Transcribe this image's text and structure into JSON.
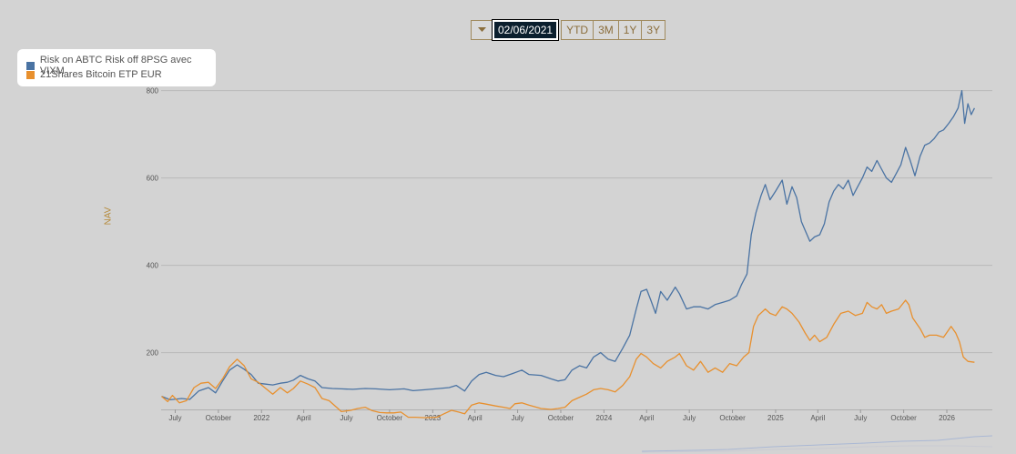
{
  "range_selector": {
    "date": "02/06/2021",
    "buttons": [
      "YTD",
      "3M",
      "1Y",
      "3Y"
    ]
  },
  "chart_data": {
    "type": "line",
    "ylabel": "NAV",
    "ylim": [
      70,
      820
    ],
    "yticks": [
      200,
      400,
      600,
      800
    ],
    "xlim": [
      "2021-06-01",
      "2026-04-08"
    ],
    "xticks": [
      {
        "date": "2021-07-01",
        "label": "July"
      },
      {
        "date": "2021-10-01",
        "label": "October"
      },
      {
        "date": "2022-01-01",
        "label": "2022"
      },
      {
        "date": "2022-04-01",
        "label": "April"
      },
      {
        "date": "2022-07-01",
        "label": "July"
      },
      {
        "date": "2022-10-01",
        "label": "October"
      },
      {
        "date": "2023-01-01",
        "label": "2023"
      },
      {
        "date": "2023-04-01",
        "label": "April"
      },
      {
        "date": "2023-07-01",
        "label": "July"
      },
      {
        "date": "2023-10-01",
        "label": "October"
      },
      {
        "date": "2024-01-01",
        "label": "2024"
      },
      {
        "date": "2024-04-01",
        "label": "April"
      },
      {
        "date": "2024-07-01",
        "label": "July"
      },
      {
        "date": "2024-10-01",
        "label": "October"
      },
      {
        "date": "2025-01-01",
        "label": "2025"
      },
      {
        "date": "2025-04-01",
        "label": "April"
      },
      {
        "date": "2025-07-01",
        "label": "July"
      },
      {
        "date": "2025-10-01",
        "label": "October"
      },
      {
        "date": "2026-01-01",
        "label": "2026"
      }
    ],
    "grid": true,
    "legend_position": "top-left",
    "series": [
      {
        "name": "Risk on ABTC Risk off 8PSG avec VIXM",
        "color": "#4a73a3",
        "points": [
          [
            "2021-06-02",
            100
          ],
          [
            "2021-06-20",
            92
          ],
          [
            "2021-07-15",
            95
          ],
          [
            "2021-08-01",
            93
          ],
          [
            "2021-08-20",
            112
          ],
          [
            "2021-09-10",
            120
          ],
          [
            "2021-09-25",
            108
          ],
          [
            "2021-10-10",
            135
          ],
          [
            "2021-10-25",
            160
          ],
          [
            "2021-11-10",
            172
          ],
          [
            "2021-11-25",
            162
          ],
          [
            "2021-12-10",
            150
          ],
          [
            "2021-12-25",
            130
          ],
          [
            "2022-01-10",
            128
          ],
          [
            "2022-01-25",
            126
          ],
          [
            "2022-02-10",
            130
          ],
          [
            "2022-02-25",
            132
          ],
          [
            "2022-03-10",
            137
          ],
          [
            "2022-03-25",
            148
          ],
          [
            "2022-04-10",
            140
          ],
          [
            "2022-04-25",
            135
          ],
          [
            "2022-05-10",
            120
          ],
          [
            "2022-06-01",
            118
          ],
          [
            "2022-06-20",
            117
          ],
          [
            "2022-07-15",
            116
          ],
          [
            "2022-08-10",
            118
          ],
          [
            "2022-09-01",
            117
          ],
          [
            "2022-10-01",
            115
          ],
          [
            "2022-11-01",
            117
          ],
          [
            "2022-11-20",
            113
          ],
          [
            "2022-12-15",
            115
          ],
          [
            "2023-01-15",
            118
          ],
          [
            "2023-02-05",
            120
          ],
          [
            "2023-02-20",
            125
          ],
          [
            "2023-03-10",
            112
          ],
          [
            "2023-03-25",
            135
          ],
          [
            "2023-04-10",
            150
          ],
          [
            "2023-04-25",
            155
          ],
          [
            "2023-05-15",
            148
          ],
          [
            "2023-06-01",
            145
          ],
          [
            "2023-06-20",
            152
          ],
          [
            "2023-07-10",
            160
          ],
          [
            "2023-07-25",
            150
          ],
          [
            "2023-08-20",
            148
          ],
          [
            "2023-09-10",
            140
          ],
          [
            "2023-09-25",
            135
          ],
          [
            "2023-10-10",
            138
          ],
          [
            "2023-10-25",
            160
          ],
          [
            "2023-11-10",
            170
          ],
          [
            "2023-11-25",
            165
          ],
          [
            "2023-12-10",
            190
          ],
          [
            "2023-12-25",
            200
          ],
          [
            "2024-01-10",
            185
          ],
          [
            "2024-01-25",
            180
          ],
          [
            "2024-02-10",
            210
          ],
          [
            "2024-02-25",
            240
          ],
          [
            "2024-03-10",
            300
          ],
          [
            "2024-03-20",
            340
          ],
          [
            "2024-04-01",
            345
          ],
          [
            "2024-04-10",
            320
          ],
          [
            "2024-04-20",
            290
          ],
          [
            "2024-05-01",
            340
          ],
          [
            "2024-05-15",
            320
          ],
          [
            "2024-06-01",
            350
          ],
          [
            "2024-06-10",
            335
          ],
          [
            "2024-06-25",
            300
          ],
          [
            "2024-07-10",
            305
          ],
          [
            "2024-07-25",
            305
          ],
          [
            "2024-08-10",
            300
          ],
          [
            "2024-08-25",
            310
          ],
          [
            "2024-09-10",
            315
          ],
          [
            "2024-09-25",
            320
          ],
          [
            "2024-10-10",
            330
          ],
          [
            "2024-10-20",
            355
          ],
          [
            "2024-11-01",
            380
          ],
          [
            "2024-11-10",
            470
          ],
          [
            "2024-11-20",
            520
          ],
          [
            "2024-12-01",
            560
          ],
          [
            "2024-12-10",
            585
          ],
          [
            "2024-12-20",
            550
          ],
          [
            "2025-01-01",
            570
          ],
          [
            "2025-01-15",
            595
          ],
          [
            "2025-01-25",
            540
          ],
          [
            "2025-02-05",
            580
          ],
          [
            "2025-02-15",
            555
          ],
          [
            "2025-02-25",
            500
          ],
          [
            "2025-03-05",
            480
          ],
          [
            "2025-03-15",
            455
          ],
          [
            "2025-03-25",
            465
          ],
          [
            "2025-04-05",
            470
          ],
          [
            "2025-04-15",
            495
          ],
          [
            "2025-04-25",
            545
          ],
          [
            "2025-05-05",
            570
          ],
          [
            "2025-05-15",
            585
          ],
          [
            "2025-05-25",
            575
          ],
          [
            "2025-06-05",
            595
          ],
          [
            "2025-06-15",
            560
          ],
          [
            "2025-06-25",
            580
          ],
          [
            "2025-07-05",
            600
          ],
          [
            "2025-07-15",
            625
          ],
          [
            "2025-07-25",
            615
          ],
          [
            "2025-08-05",
            640
          ],
          [
            "2025-08-15",
            620
          ],
          [
            "2025-08-25",
            600
          ],
          [
            "2025-09-05",
            590
          ],
          [
            "2025-09-15",
            610
          ],
          [
            "2025-09-25",
            630
          ],
          [
            "2025-10-05",
            670
          ],
          [
            "2025-10-15",
            640
          ],
          [
            "2025-10-25",
            605
          ],
          [
            "2025-11-05",
            650
          ],
          [
            "2025-11-15",
            675
          ],
          [
            "2025-11-25",
            680
          ],
          [
            "2025-12-05",
            690
          ],
          [
            "2025-12-15",
            705
          ],
          [
            "2025-12-25",
            710
          ],
          [
            "2026-01-05",
            725
          ],
          [
            "2026-01-15",
            740
          ],
          [
            "2026-01-25",
            760
          ],
          [
            "2026-02-02",
            800
          ],
          [
            "2026-02-08",
            725
          ],
          [
            "2026-02-15",
            770
          ],
          [
            "2026-02-22",
            745
          ],
          [
            "2026-03-01",
            760
          ]
        ]
      },
      {
        "name": "21Shares Bitcoin ETP EUR",
        "color": "#e8902e",
        "points": [
          [
            "2021-06-02",
            100
          ],
          [
            "2021-06-15",
            88
          ],
          [
            "2021-06-25",
            102
          ],
          [
            "2021-07-10",
            85
          ],
          [
            "2021-07-25",
            90
          ],
          [
            "2021-08-10",
            120
          ],
          [
            "2021-08-25",
            130
          ],
          [
            "2021-09-10",
            132
          ],
          [
            "2021-09-25",
            118
          ],
          [
            "2021-10-10",
            140
          ],
          [
            "2021-10-25",
            168
          ],
          [
            "2021-11-10",
            185
          ],
          [
            "2021-11-25",
            170
          ],
          [
            "2021-12-10",
            140
          ],
          [
            "2021-12-25",
            132
          ],
          [
            "2022-01-10",
            118
          ],
          [
            "2022-01-25",
            105
          ],
          [
            "2022-02-10",
            120
          ],
          [
            "2022-02-25",
            108
          ],
          [
            "2022-03-10",
            118
          ],
          [
            "2022-03-25",
            135
          ],
          [
            "2022-04-10",
            128
          ],
          [
            "2022-04-25",
            120
          ],
          [
            "2022-05-10",
            95
          ],
          [
            "2022-05-25",
            90
          ],
          [
            "2022-06-10",
            75
          ],
          [
            "2022-06-20",
            65
          ],
          [
            "2022-07-10",
            68
          ],
          [
            "2022-07-25",
            72
          ],
          [
            "2022-08-10",
            75
          ],
          [
            "2022-08-25",
            67
          ],
          [
            "2022-09-10",
            63
          ],
          [
            "2022-09-25",
            62
          ],
          [
            "2022-10-10",
            62
          ],
          [
            "2022-10-25",
            64
          ],
          [
            "2022-11-10",
            52
          ],
          [
            "2022-11-25",
            52
          ],
          [
            "2022-12-15",
            51
          ],
          [
            "2023-01-10",
            52
          ],
          [
            "2023-01-25",
            60
          ],
          [
            "2023-02-10",
            68
          ],
          [
            "2023-02-25",
            64
          ],
          [
            "2023-03-10",
            60
          ],
          [
            "2023-03-25",
            80
          ],
          [
            "2023-04-10",
            85
          ],
          [
            "2023-04-25",
            82
          ],
          [
            "2023-05-15",
            78
          ],
          [
            "2023-06-01",
            75
          ],
          [
            "2023-06-15",
            72
          ],
          [
            "2023-06-25",
            83
          ],
          [
            "2023-07-10",
            85
          ],
          [
            "2023-07-25",
            80
          ],
          [
            "2023-08-20",
            72
          ],
          [
            "2023-09-10",
            70
          ],
          [
            "2023-09-25",
            72
          ],
          [
            "2023-10-10",
            75
          ],
          [
            "2023-10-25",
            90
          ],
          [
            "2023-11-10",
            98
          ],
          [
            "2023-11-25",
            105
          ],
          [
            "2023-12-10",
            115
          ],
          [
            "2023-12-25",
            118
          ],
          [
            "2024-01-10",
            115
          ],
          [
            "2024-01-25",
            110
          ],
          [
            "2024-02-10",
            125
          ],
          [
            "2024-02-25",
            145
          ],
          [
            "2024-03-10",
            185
          ],
          [
            "2024-03-20",
            198
          ],
          [
            "2024-04-01",
            190
          ],
          [
            "2024-04-15",
            175
          ],
          [
            "2024-05-01",
            165
          ],
          [
            "2024-05-15",
            180
          ],
          [
            "2024-06-01",
            190
          ],
          [
            "2024-06-10",
            198
          ],
          [
            "2024-06-25",
            170
          ],
          [
            "2024-07-10",
            160
          ],
          [
            "2024-07-25",
            180
          ],
          [
            "2024-08-10",
            155
          ],
          [
            "2024-08-25",
            165
          ],
          [
            "2024-09-10",
            155
          ],
          [
            "2024-09-25",
            175
          ],
          [
            "2024-10-10",
            170
          ],
          [
            "2024-10-25",
            190
          ],
          [
            "2024-11-05",
            200
          ],
          [
            "2024-11-15",
            260
          ],
          [
            "2024-11-25",
            285
          ],
          [
            "2024-12-10",
            300
          ],
          [
            "2024-12-20",
            290
          ],
          [
            "2025-01-01",
            285
          ],
          [
            "2025-01-15",
            305
          ],
          [
            "2025-01-25",
            300
          ],
          [
            "2025-02-05",
            290
          ],
          [
            "2025-02-20",
            270
          ],
          [
            "2025-03-05",
            245
          ],
          [
            "2025-03-15",
            228
          ],
          [
            "2025-03-25",
            240
          ],
          [
            "2025-04-05",
            225
          ],
          [
            "2025-04-20",
            235
          ],
          [
            "2025-05-05",
            265
          ],
          [
            "2025-05-20",
            290
          ],
          [
            "2025-06-05",
            295
          ],
          [
            "2025-06-20",
            285
          ],
          [
            "2025-07-05",
            290
          ],
          [
            "2025-07-15",
            315
          ],
          [
            "2025-07-25",
            305
          ],
          [
            "2025-08-05",
            300
          ],
          [
            "2025-08-15",
            310
          ],
          [
            "2025-08-25",
            290
          ],
          [
            "2025-09-05",
            295
          ],
          [
            "2025-09-20",
            300
          ],
          [
            "2025-10-05",
            320
          ],
          [
            "2025-10-12",
            310
          ],
          [
            "2025-10-20",
            280
          ],
          [
            "2025-11-05",
            255
          ],
          [
            "2025-11-15",
            235
          ],
          [
            "2025-11-25",
            240
          ],
          [
            "2025-12-10",
            240
          ],
          [
            "2025-12-25",
            235
          ],
          [
            "2026-01-10",
            260
          ],
          [
            "2026-01-20",
            245
          ],
          [
            "2026-01-28",
            225
          ],
          [
            "2026-02-05",
            190
          ],
          [
            "2026-02-15",
            180
          ],
          [
            "2026-03-01",
            178
          ]
        ]
      }
    ]
  }
}
